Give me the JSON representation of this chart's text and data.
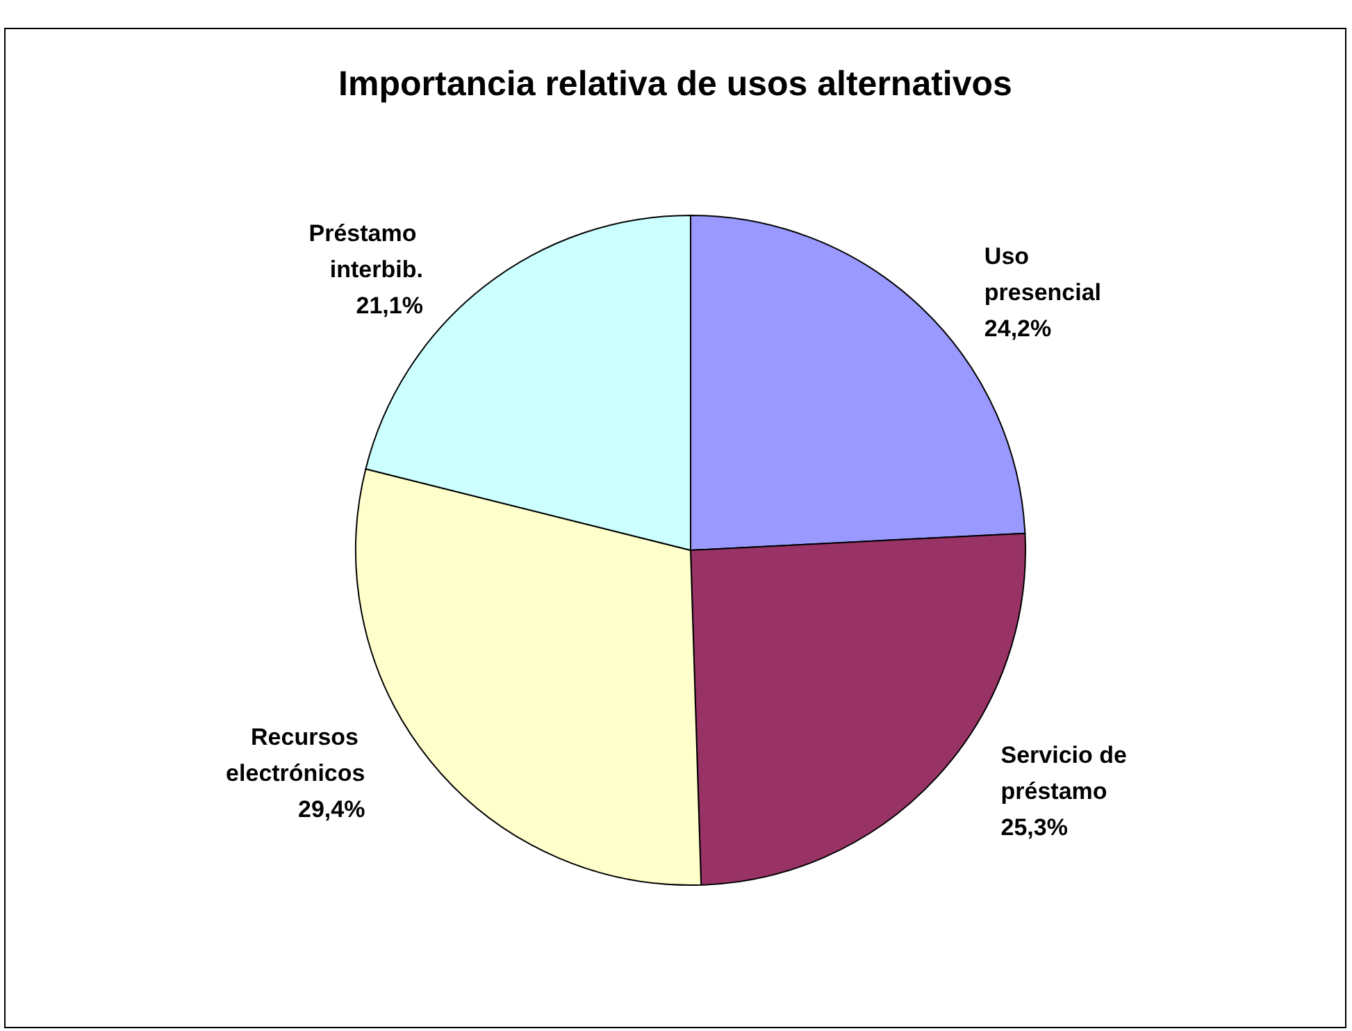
{
  "chart_data": {
    "type": "pie",
    "title": "Importancia relativa de usos alternativos",
    "categories": [
      "Uso presencial",
      "Servicio de préstamo",
      "Recursos electrónicos",
      "Préstamo interbib."
    ],
    "values": [
      24.2,
      25.3,
      29.4,
      21.1
    ],
    "value_labels": [
      "24,2%",
      "25,3%",
      "29,4%",
      "21,1%"
    ],
    "colors": [
      "#9999ff",
      "#993366",
      "#ffffcc",
      "#ccffff"
    ],
    "legend": false
  }
}
